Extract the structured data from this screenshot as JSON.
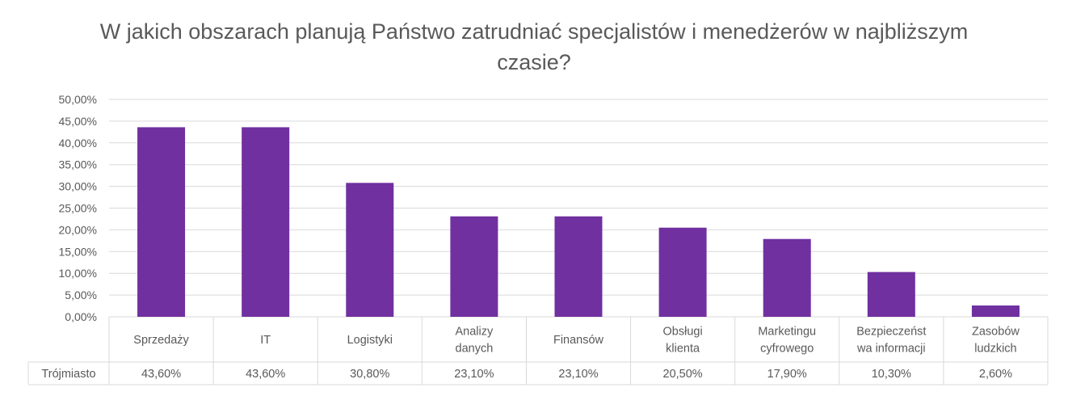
{
  "chart_data": {
    "type": "bar",
    "title": "W jakich obszarach planują Państwo zatrudniać specjalistów i menedżerów w najbliższym czasie?",
    "categories": [
      [
        "Sprzedaży"
      ],
      [
        "IT"
      ],
      [
        "Logistyki"
      ],
      [
        "Analizy",
        "danych"
      ],
      [
        "Finansów"
      ],
      [
        "Obsługi",
        "klienta"
      ],
      [
        "Marketingu",
        "cyfrowego"
      ],
      [
        "Bezpieczeńst",
        "wa informacji"
      ],
      [
        "Zasobów",
        "ludzkich"
      ]
    ],
    "series": [
      {
        "name": "Trójmiasto",
        "values": [
          43.6,
          43.6,
          30.8,
          23.1,
          23.1,
          20.5,
          17.9,
          10.3,
          2.6
        ],
        "labels": [
          "43,60%",
          "43,60%",
          "30,80%",
          "23,10%",
          "23,10%",
          "20,50%",
          "17,90%",
          "10,30%",
          "2,60%"
        ]
      }
    ],
    "ylim": [
      0,
      50
    ],
    "yticks": [
      "0,00%",
      "5,00%",
      "10,00%",
      "15,00%",
      "20,00%",
      "25,00%",
      "30,00%",
      "35,00%",
      "40,00%",
      "45,00%",
      "50,00%"
    ],
    "grid": true,
    "data_table": true,
    "colors": {
      "bar": "#7030a0",
      "grid": "#d9d9d9",
      "text": "#595959"
    }
  }
}
